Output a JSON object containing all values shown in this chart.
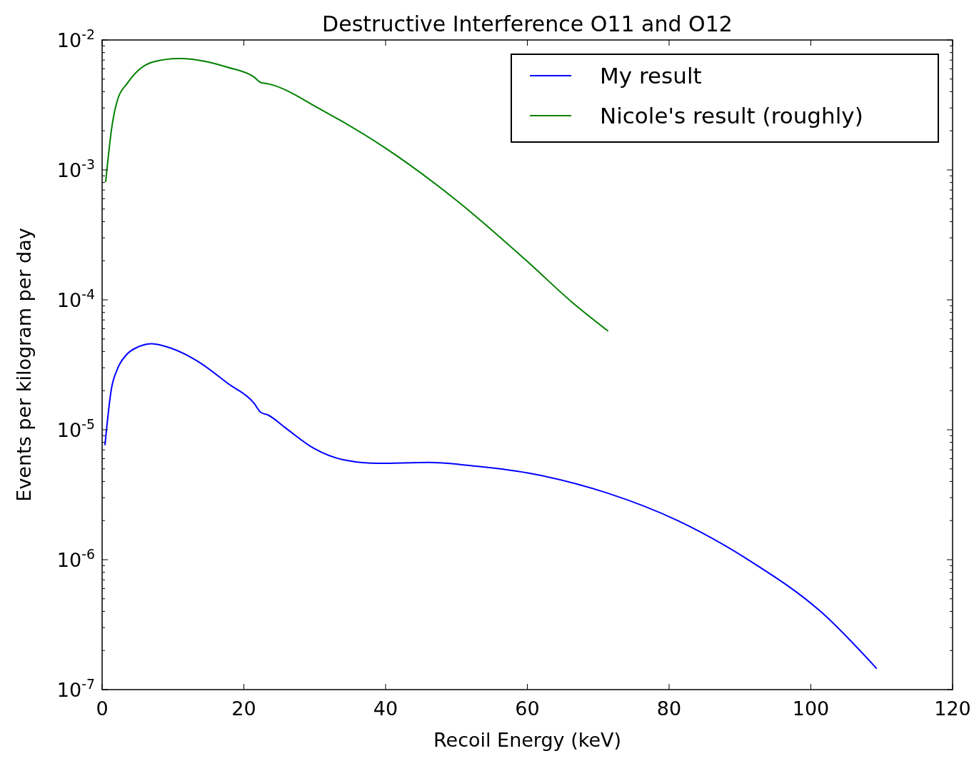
{
  "chart_data": {
    "type": "line",
    "title": "Destructive Interference O11 and O12",
    "xlabel": "Recoil Energy (keV)",
    "ylabel": "Events per kilogram per day",
    "log": "y",
    "grid": false,
    "legend": "top right",
    "xlim": [
      0,
      120
    ],
    "xticks": [
      0,
      20,
      40,
      60,
      80,
      100,
      120
    ],
    "ylim": [
      1e-07,
      0.01
    ],
    "yticks": [
      {
        "value": 1e-07,
        "label": "10$^{-7}$"
      },
      {
        "value": 1e-06,
        "label": "10$^{-6}$"
      },
      {
        "value": 1e-05,
        "label": "10$^{-5}$"
      },
      {
        "value": 0.0001,
        "label": "10$^{-4}$"
      },
      {
        "value": 0.001,
        "label": "10$^{-3}$"
      },
      {
        "value": 0.01,
        "label": "10$^{-2}$"
      }
    ],
    "series": [
      {
        "name": "My result",
        "color": "#0000ff",
        "x": [
          0.4,
          1.3,
          2.2,
          3.5,
          5.2,
          7,
          9.8,
          13.8,
          17.8,
          21.4,
          22.4,
          23.4,
          25.9,
          29.9,
          34,
          39,
          46,
          52,
          60.2,
          71.2,
          81.3,
          91.4,
          101.5,
          109.3
        ],
        "values": [
          7.6e-06,
          2.05e-05,
          2.97e-05,
          3.81e-05,
          4.37e-05,
          4.6e-05,
          4.23e-05,
          3.28e-05,
          2.26e-05,
          1.61e-05,
          1.36e-05,
          1.3e-05,
          1.03e-05,
          7.18e-06,
          5.88e-06,
          5.52e-06,
          5.6e-06,
          5.3e-06,
          4.64e-06,
          3.27e-06,
          1.99e-06,
          9.8e-07,
          3.94e-07,
          1.45e-07
        ]
      },
      {
        "name": "Nicole's result (roughly)",
        "color": "#008000",
        "x": [
          0.5,
          1.4,
          2.2,
          3.5,
          5.2,
          7.3,
          10.8,
          13.8,
          17.8,
          21.4,
          22.4,
          23.4,
          30.9,
          40,
          50.1,
          60.2,
          66.2,
          71.4
        ],
        "values": [
          0.000807,
          0.00219,
          0.0035,
          0.0046,
          0.0059,
          0.0068,
          0.0072,
          0.00696,
          0.00615,
          0.0052,
          0.0047,
          0.0046,
          0.00291,
          0.00147,
          0.000577,
          0.000193,
          9.7e-05,
          5.75e-05
        ]
      }
    ]
  }
}
